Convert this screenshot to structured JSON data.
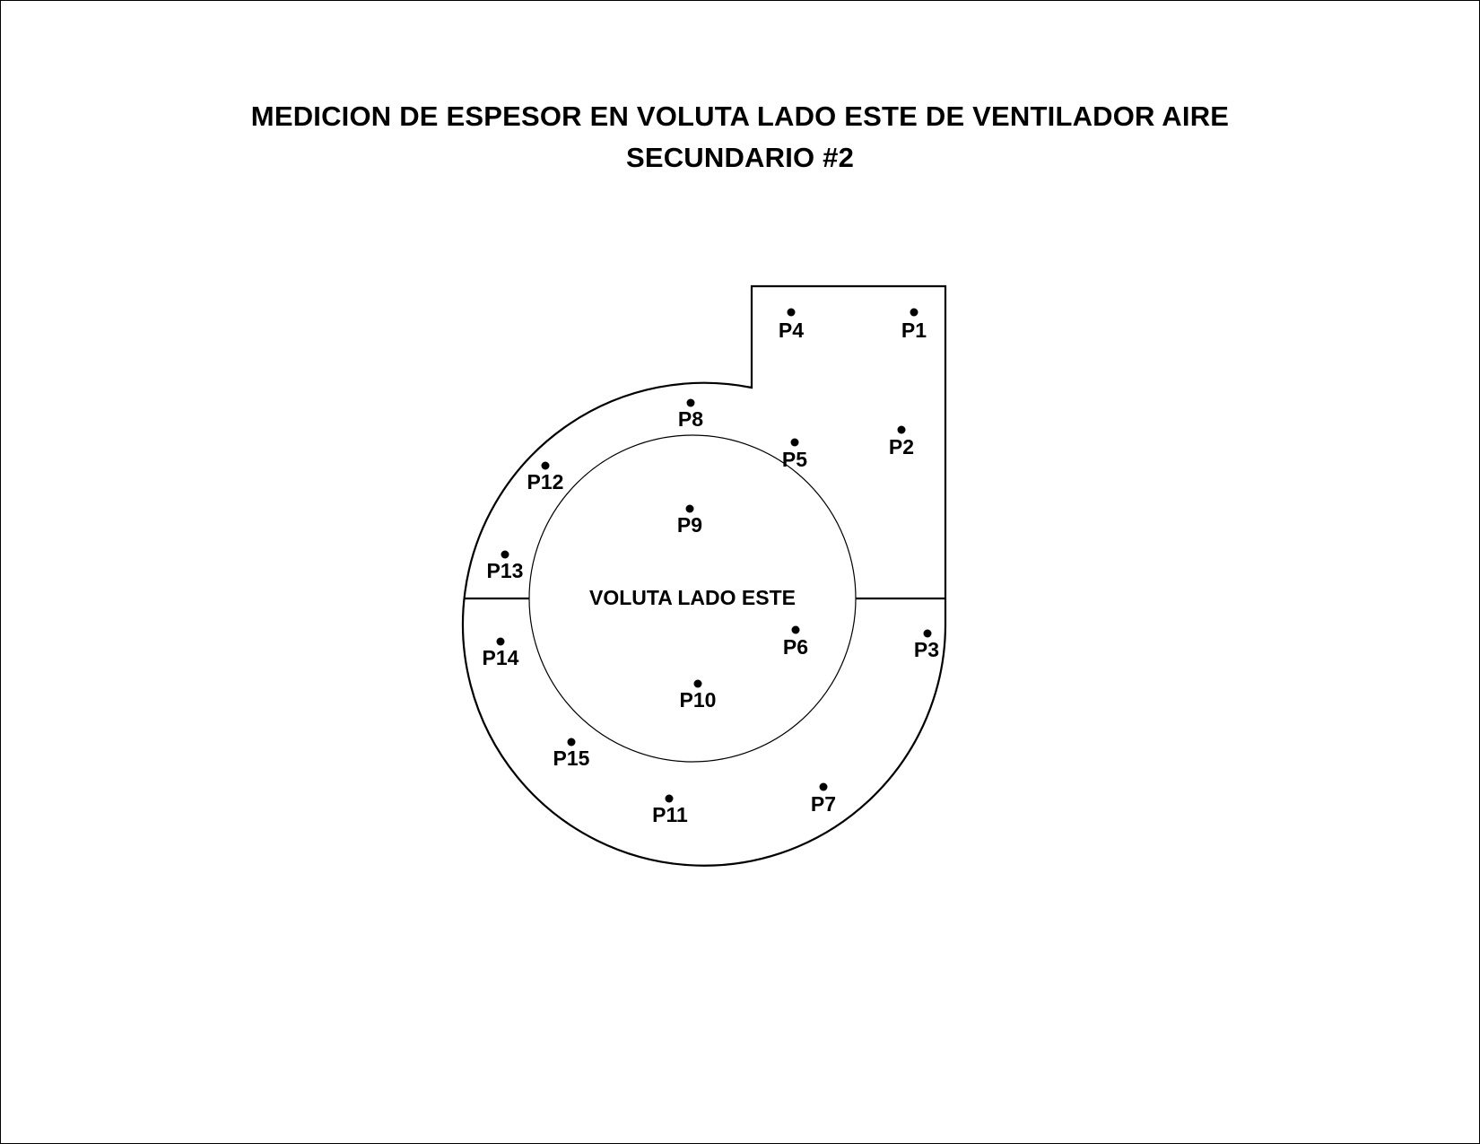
{
  "title": {
    "line1": "MEDICION DE ESPESOR EN VOLUTA LADO ESTE DE VENTILADOR AIRE",
    "line2": "SECUNDARIO #2"
  },
  "diagram": {
    "center_label": "VOLUTA LADO ESTE",
    "points": [
      "P1",
      "P2",
      "P3",
      "P4",
      "P5",
      "P6",
      "P7",
      "P8",
      "P9",
      "P10",
      "P11",
      "P12",
      "P13",
      "P14",
      "P15"
    ]
  }
}
